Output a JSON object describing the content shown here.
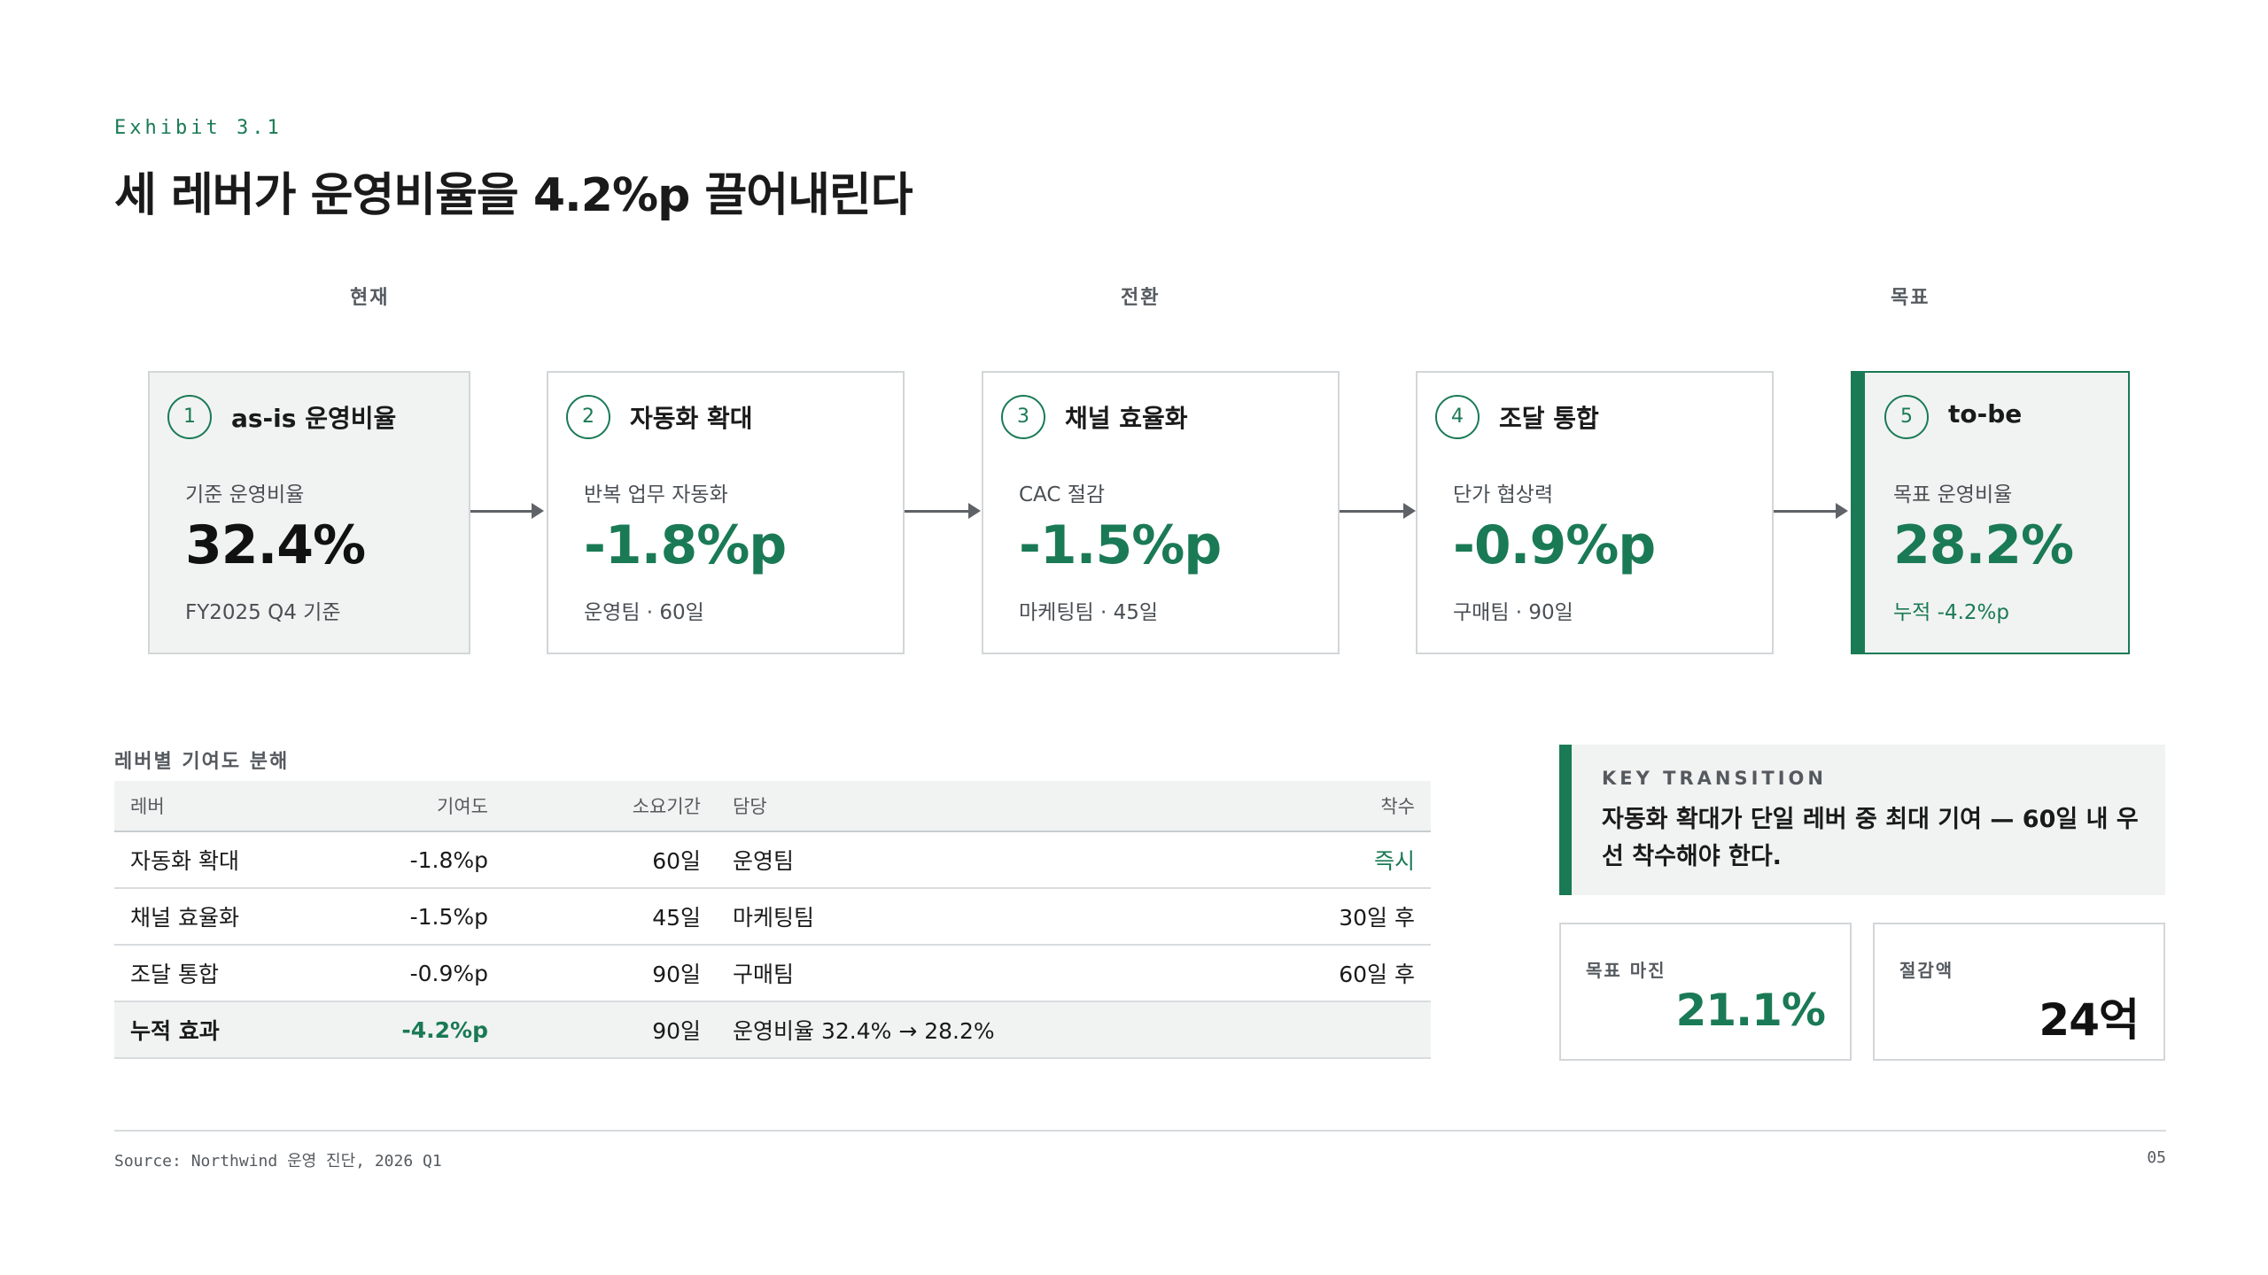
{
  "header": {
    "exhibit": "Exhibit 3.1",
    "title": "세 레버가 운영비율을 4.2%p 끌어내린다"
  },
  "phases": [
    "현재",
    "전환",
    "목표"
  ],
  "cards": [
    {
      "num": "1",
      "title": "as-is 운영비율",
      "label": "기준 운영비율",
      "value": "32.4%",
      "foot": "FY2025 Q4 기준"
    },
    {
      "num": "2",
      "title": "자동화 확대",
      "label": "반복 업무 자동화",
      "value": "-1.8%p",
      "foot": "운영팀 · 60일"
    },
    {
      "num": "3",
      "title": "채널 효율화",
      "label": "CAC 절감",
      "value": "-1.5%p",
      "foot": "마케팅팀 · 45일"
    },
    {
      "num": "4",
      "title": "조달 통합",
      "label": "단가 협상력",
      "value": "-0.9%p",
      "foot": "구매팀 · 90일"
    },
    {
      "num": "5",
      "title": "to-be",
      "label": "목표 운영비율",
      "value": "28.2%",
      "foot": "누적 -4.2%p"
    }
  ],
  "table": {
    "title": "레버별 기여도 분해",
    "headers": [
      "레버",
      "기여도",
      "소요기간",
      "담당",
      "착수"
    ],
    "rows": [
      [
        "자동화 확대",
        "-1.8%p",
        "60일",
        "운영팀",
        "즉시"
      ],
      [
        "채널 효율화",
        "-1.5%p",
        "45일",
        "마케팅팀",
        "30일 후"
      ],
      [
        "조달 통합",
        "-0.9%p",
        "90일",
        "구매팀",
        "60일 후"
      ],
      [
        "누적 효과",
        "-4.2%p",
        "90일",
        "운영비율 32.4% → 28.2%",
        ""
      ]
    ]
  },
  "key_transition": {
    "label": "KEY TRANSITION",
    "text": "자동화 확대가 단일 레버 중 최대 기여 — 60일 내 우선 착수해야 한다."
  },
  "metrics": [
    {
      "label": "목표 마진",
      "value": "21.1%"
    },
    {
      "label": "절감액",
      "value": "24억"
    }
  ],
  "footer": {
    "source": "Source: Northwind 운영 진단, 2026 Q1",
    "page": "05"
  },
  "colors": {
    "accent": "#1a7a55",
    "panel": "#f1f3f2",
    "border": "#d3d6d8"
  }
}
